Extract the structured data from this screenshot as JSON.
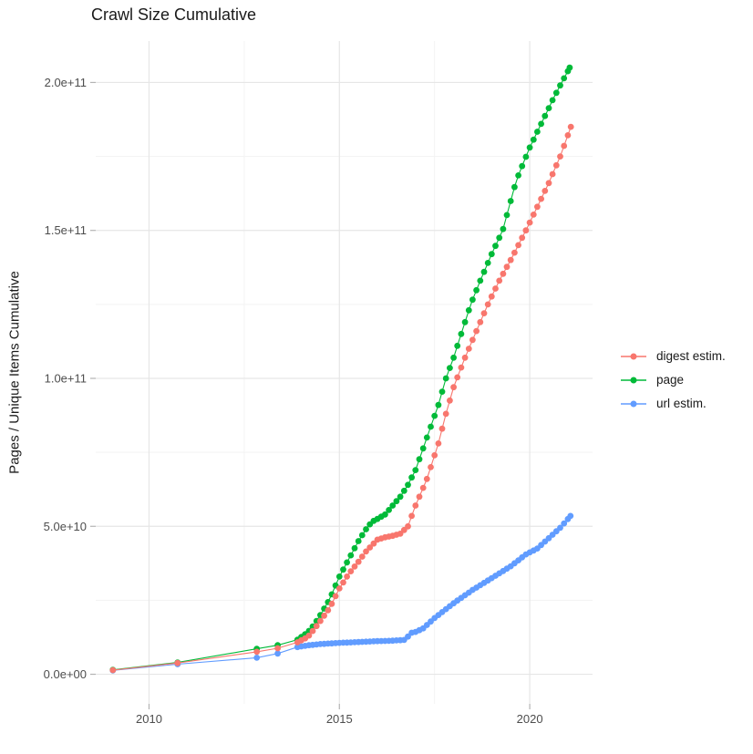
{
  "chart_data": {
    "type": "scatter",
    "title": "Crawl Size Cumulative",
    "xlabel": "",
    "ylabel": "Pages / Unique Items Cumulative",
    "legend_position": "right",
    "grid": true,
    "xlim": [
      2008.6,
      2021.65
    ],
    "ylim_e9": [
      -10,
      214
    ],
    "x_ticks": {
      "values": [
        2010,
        2015,
        2020
      ],
      "labels": [
        "2010",
        "2015",
        "2020"
      ],
      "minor": [
        2012.5,
        2017.5
      ]
    },
    "y_ticks": {
      "values_e9": [
        0,
        50,
        100,
        150,
        200
      ],
      "labels": [
        "0.0e+00",
        "5.0e+10",
        "1.0e+11",
        "1.5e+11",
        "2.0e+11"
      ],
      "minor_e9": [
        25,
        75,
        125,
        175
      ]
    },
    "value_unit": "1e9 pages (anchors_e9 values are in billions)",
    "dense_from": 2013.9,
    "sample_step": 0.1,
    "colors": {
      "grid_major": "#E6E6E6",
      "grid_minor": "#F3F3F3",
      "tick": "#B3B3B3",
      "tick_label": "#4D4D4D",
      "text": "#1A1A1A"
    },
    "series": [
      {
        "name": "digest estim.",
        "color": "#F8766D",
        "anchors_e9": [
          [
            2009.05,
            1.4
          ],
          [
            2010.75,
            3.8
          ],
          [
            2012.83,
            7.6
          ],
          [
            2013.38,
            8.8
          ],
          [
            2013.9,
            10.8
          ],
          [
            2014.17,
            12.6
          ],
          [
            2014.33,
            15.1
          ],
          [
            2014.5,
            18
          ],
          [
            2014.75,
            22.5
          ],
          [
            2015.0,
            29
          ],
          [
            2015.25,
            34
          ],
          [
            2015.5,
            38
          ],
          [
            2015.7,
            41.5
          ],
          [
            2015.85,
            43.5
          ],
          [
            2016.0,
            45.5
          ],
          [
            2016.2,
            46.3
          ],
          [
            2016.4,
            46.8
          ],
          [
            2016.6,
            47.5
          ],
          [
            2016.8,
            50
          ],
          [
            2017.0,
            57
          ],
          [
            2017.3,
            66
          ],
          [
            2017.6,
            78
          ],
          [
            2017.8,
            88
          ],
          [
            2018.0,
            97
          ],
          [
            2018.3,
            107
          ],
          [
            2018.6,
            116
          ],
          [
            2018.9,
            125
          ],
          [
            2019.2,
            133
          ],
          [
            2019.5,
            140
          ],
          [
            2019.9,
            150
          ],
          [
            2020.2,
            158
          ],
          [
            2020.5,
            166
          ],
          [
            2020.8,
            175
          ],
          [
            2021.08,
            185
          ]
        ]
      },
      {
        "name": "page",
        "color": "#00BA38",
        "anchors_e9": [
          [
            2009.05,
            1.5
          ],
          [
            2010.75,
            4.0
          ],
          [
            2012.83,
            8.6
          ],
          [
            2013.38,
            9.8
          ],
          [
            2013.9,
            11.7
          ],
          [
            2014.17,
            14.2
          ],
          [
            2014.33,
            16.6
          ],
          [
            2014.5,
            20
          ],
          [
            2014.75,
            25.5
          ],
          [
            2015.0,
            33
          ],
          [
            2015.25,
            39
          ],
          [
            2015.5,
            45
          ],
          [
            2015.7,
            49
          ],
          [
            2015.85,
            51.5
          ],
          [
            2016.0,
            52.5
          ],
          [
            2016.2,
            54
          ],
          [
            2016.4,
            57
          ],
          [
            2016.6,
            60
          ],
          [
            2016.8,
            64
          ],
          [
            2017.0,
            69
          ],
          [
            2017.3,
            80
          ],
          [
            2017.6,
            91
          ],
          [
            2017.8,
            100
          ],
          [
            2018.0,
            107
          ],
          [
            2018.45,
            125
          ],
          [
            2018.7,
            133
          ],
          [
            2019.0,
            142
          ],
          [
            2019.29,
            150
          ],
          [
            2019.65,
            167
          ],
          [
            2020.0,
            178
          ],
          [
            2020.3,
            186
          ],
          [
            2020.6,
            194
          ],
          [
            2020.8,
            199
          ],
          [
            2021.05,
            205
          ]
        ]
      },
      {
        "name": "url estim.",
        "color": "#619CFF",
        "anchors_e9": [
          [
            2009.05,
            1.3
          ],
          [
            2010.75,
            3.4
          ],
          [
            2012.83,
            5.6
          ],
          [
            2013.38,
            7.0
          ],
          [
            2013.9,
            9.2
          ],
          [
            2014.2,
            9.8
          ],
          [
            2014.5,
            10.2
          ],
          [
            2015.0,
            10.6
          ],
          [
            2015.5,
            10.9
          ],
          [
            2016.0,
            11.2
          ],
          [
            2016.3,
            11.3
          ],
          [
            2016.6,
            11.5
          ],
          [
            2016.78,
            11.7
          ],
          [
            2016.82,
            13.8
          ],
          [
            2017.0,
            14.3
          ],
          [
            2017.2,
            15.5
          ],
          [
            2017.5,
            19.0
          ],
          [
            2017.8,
            22.0
          ],
          [
            2018.0,
            24.0
          ],
          [
            2018.5,
            28.5
          ],
          [
            2019.0,
            32.5
          ],
          [
            2019.5,
            36.5
          ],
          [
            2019.9,
            40.5
          ],
          [
            2020.2,
            42.5
          ],
          [
            2020.5,
            46.0
          ],
          [
            2020.8,
            49.5
          ],
          [
            2021.07,
            53.5
          ]
        ]
      }
    ],
    "legend": {
      "items": [
        "digest estim.",
        "page",
        "url estim."
      ]
    }
  }
}
